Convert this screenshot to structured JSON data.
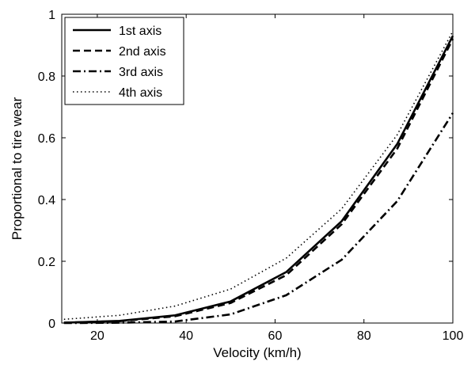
{
  "chart_data": {
    "type": "line",
    "title": "",
    "xlabel": "Velocity (km/h)",
    "ylabel": "Proportional to tire wear",
    "xlim": [
      12,
      100
    ],
    "ylim": [
      0,
      1
    ],
    "xticks": [
      20,
      40,
      60,
      80,
      100
    ],
    "yticks": [
      0,
      0.2,
      0.4,
      0.6,
      0.8,
      1
    ],
    "ytick_labels": [
      "0",
      "0.2",
      "0.4",
      "0.6",
      "0.8",
      "1"
    ],
    "grid": false,
    "legend_position": "top-left",
    "series": [
      {
        "name": "1st axis",
        "style": "solid",
        "color": "#000000",
        "x": [
          12.5,
          25,
          37.5,
          50,
          62.5,
          75,
          87.5,
          100
        ],
        "y": [
          0.001,
          0.007,
          0.025,
          0.07,
          0.165,
          0.33,
          0.58,
          0.93
        ]
      },
      {
        "name": "2nd axis",
        "style": "dashed",
        "color": "#000000",
        "x": [
          12.5,
          25,
          37.5,
          50,
          62.5,
          75,
          87.5,
          100
        ],
        "y": [
          0.001,
          0.006,
          0.022,
          0.065,
          0.155,
          0.32,
          0.565,
          0.92
        ]
      },
      {
        "name": "3rd axis",
        "style": "dashdot",
        "color": "#000000",
        "x": [
          12.5,
          25,
          37.5,
          50,
          62.5,
          75,
          87.5,
          100
        ],
        "y": [
          0,
          0.001,
          0.005,
          0.028,
          0.09,
          0.205,
          0.395,
          0.68
        ]
      },
      {
        "name": "4th axis",
        "style": "dotted",
        "color": "#000000",
        "x": [
          12.5,
          25,
          37.5,
          50,
          62.5,
          75,
          87.5,
          100
        ],
        "y": [
          0.012,
          0.025,
          0.055,
          0.11,
          0.21,
          0.37,
          0.61,
          0.945
        ]
      }
    ]
  }
}
